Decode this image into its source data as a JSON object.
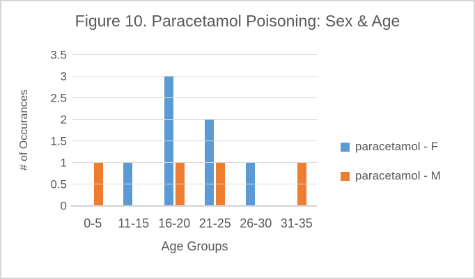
{
  "chart_data": {
    "type": "bar",
    "title": "Figure 10. Paracetamol Poisoning: Sex & Age",
    "xlabel": "Age Groups",
    "ylabel": "# of Occurances",
    "categories": [
      "0-5",
      "11-15",
      "16-20",
      "21-25",
      "26-30",
      "31-35"
    ],
    "series": [
      {
        "name": "paracetamol - F",
        "color": "#5B9BD5",
        "values": [
          0,
          1,
          3,
          2,
          1,
          0
        ]
      },
      {
        "name": "paracetamol - M",
        "color": "#ED7D31",
        "values": [
          1,
          0,
          1,
          1,
          0,
          1
        ]
      }
    ],
    "ylim": [
      0,
      3.5
    ],
    "ytick_step": 0.5,
    "yticks": [
      "0",
      "0.5",
      "1",
      "1.5",
      "2",
      "2.5",
      "3",
      "3.5"
    ],
    "grid": true,
    "legend_position": "right"
  },
  "colors": {
    "series_f": "#5B9BD5",
    "series_m": "#ED7D31",
    "gridline": "#D9D9D9",
    "axis_line": "#D2D2D2",
    "text": "#595959",
    "frame_border": "#D5D5D5",
    "background": "#FFFFFF"
  }
}
